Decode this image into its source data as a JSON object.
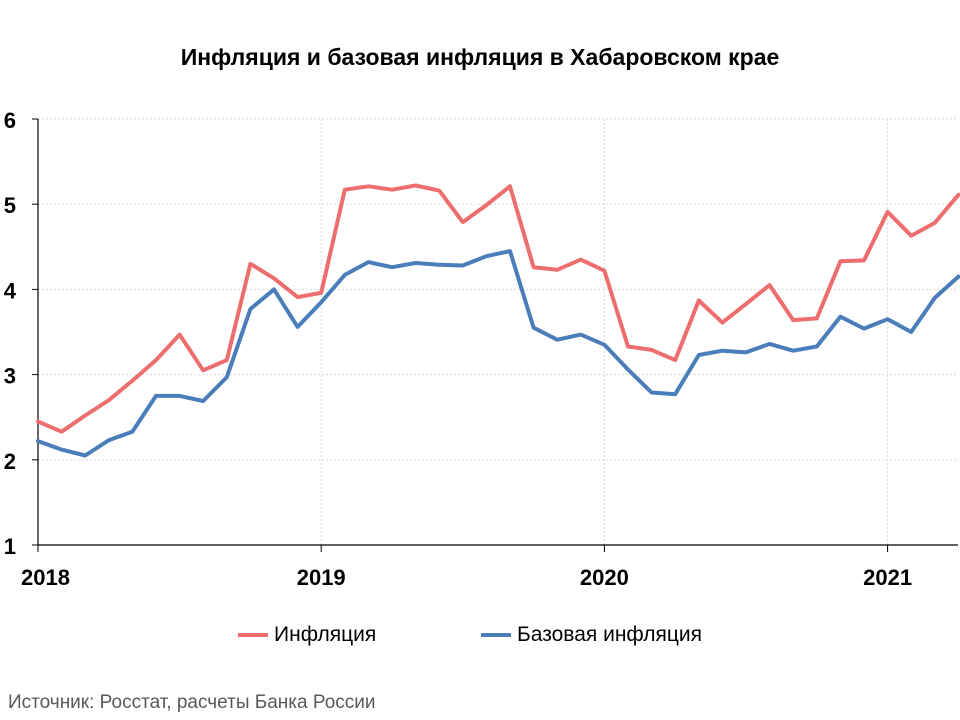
{
  "chart_data": {
    "type": "line",
    "title": "Инфляция и базовая инфляция в Хабаровском крае",
    "source": "Источник: Росстат, расчеты Банка России",
    "ylim": [
      1,
      6
    ],
    "yticks": [
      "1",
      "2",
      "3",
      "4",
      "5",
      "6"
    ],
    "xticks": [
      "2018",
      "2019",
      "2020",
      "2021"
    ],
    "grid": true,
    "legend_position": "bottom",
    "x": [
      "2018-01",
      "2018-02",
      "2018-03",
      "2018-04",
      "2018-05",
      "2018-06",
      "2018-07",
      "2018-08",
      "2018-09",
      "2018-10",
      "2018-11",
      "2018-12",
      "2019-01",
      "2019-02",
      "2019-03",
      "2019-04",
      "2019-05",
      "2019-06",
      "2019-07",
      "2019-08",
      "2019-09",
      "2019-10",
      "2019-11",
      "2019-12",
      "2020-01",
      "2020-02",
      "2020-03",
      "2020-04",
      "2020-05",
      "2020-06",
      "2020-07",
      "2020-08",
      "2020-09",
      "2020-10",
      "2020-11",
      "2020-12",
      "2021-01",
      "2021-02",
      "2021-03",
      "2021-04"
    ],
    "series": [
      {
        "name": "Инфляция",
        "color": "#ee6d6d",
        "values": [
          2.45,
          2.33,
          2.52,
          2.7,
          2.93,
          3.17,
          3.47,
          3.05,
          3.17,
          4.3,
          4.13,
          3.91,
          3.96,
          5.17,
          5.21,
          5.17,
          5.22,
          5.16,
          4.79,
          4.99,
          5.21,
          4.26,
          4.23,
          4.35,
          4.22,
          3.33,
          3.29,
          3.17,
          3.87,
          3.61,
          3.83,
          4.05,
          3.64,
          3.66,
          4.33,
          4.34,
          4.91,
          4.63,
          4.78,
          5.11
        ]
      },
      {
        "name": "Базовая инфляция",
        "color": "#4a7ebb",
        "values": [
          2.22,
          2.12,
          2.05,
          2.23,
          2.33,
          2.75,
          2.75,
          2.69,
          2.97,
          3.77,
          4.0,
          3.56,
          3.85,
          4.17,
          4.32,
          4.26,
          4.31,
          4.29,
          4.28,
          4.39,
          4.45,
          3.55,
          3.41,
          3.47,
          3.35,
          3.06,
          2.79,
          2.77,
          3.23,
          3.28,
          3.26,
          3.36,
          3.28,
          3.33,
          3.68,
          3.54,
          3.65,
          3.5,
          3.9,
          4.15
        ]
      }
    ]
  }
}
